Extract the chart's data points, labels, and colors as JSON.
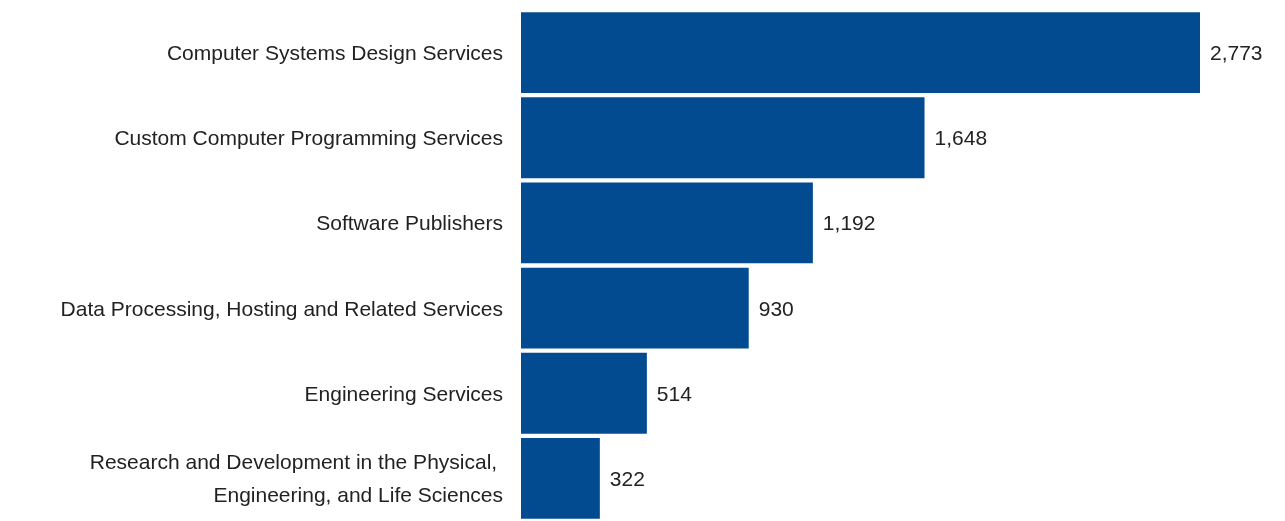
{
  "chart_data": {
    "type": "bar",
    "orientation": "horizontal",
    "categories": [
      "Computer Systems Design Services",
      "Custom Computer Programming Services",
      "Software Publishers",
      "Data Processing, Hosting and Related Services",
      "Engineering Services",
      "Research and Development in the Physical, Engineering, and Life Sciences"
    ],
    "values": [
      2773,
      1648,
      1192,
      930,
      514,
      322
    ],
    "value_labels": [
      "2,773",
      "1,648",
      "1,192",
      "930",
      "514",
      "322"
    ],
    "color": "#034b91"
  }
}
